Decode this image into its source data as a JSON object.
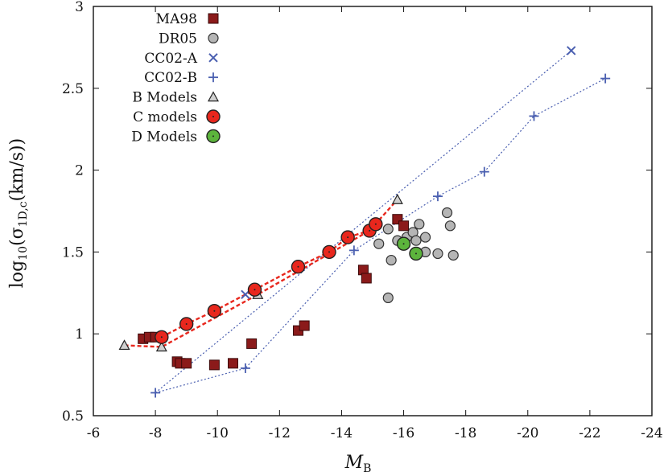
{
  "chart_data": {
    "type": "scatter",
    "title": "",
    "xlabel": "M",
    "xlabel_sub": "B",
    "ylabel_prefix": "log",
    "ylabel_sub10": "10",
    "ylabel_sigma": "σ",
    "ylabel_sub": "1D,c",
    "ylabel_unit": "(km/s))",
    "ylabel_open": "(",
    "xlim": [
      -6,
      -24
    ],
    "ylim": [
      0.5,
      3
    ],
    "xticks": [
      -6,
      -8,
      -10,
      -12,
      -14,
      -16,
      -18,
      -20,
      -22,
      -24
    ],
    "xtick_labels": [
      "-6",
      "-8",
      "-10",
      "-12",
      "-14",
      "-16",
      "-18",
      "-20",
      "-22",
      "-24"
    ],
    "yticks": [
      0.5,
      1,
      1.5,
      2,
      2.5,
      3
    ],
    "ytick_labels": [
      "0.5",
      "1",
      "1.5",
      "2",
      "2.5",
      "3"
    ],
    "legend_position": "top-left",
    "series": [
      {
        "name": "MA98",
        "marker": "square",
        "color": "#8b1a1a",
        "points": [
          [
            -7.6,
            0.97
          ],
          [
            -7.8,
            0.98
          ],
          [
            -8.0,
            0.98
          ],
          [
            -8.7,
            0.83
          ],
          [
            -8.8,
            0.82
          ],
          [
            -9.0,
            0.82
          ],
          [
            -9.9,
            0.81
          ],
          [
            -10.5,
            0.82
          ],
          [
            -11.1,
            0.94
          ],
          [
            -12.6,
            1.02
          ],
          [
            -12.8,
            1.05
          ],
          [
            -14.7,
            1.39
          ],
          [
            -14.8,
            1.34
          ],
          [
            -15.8,
            1.7
          ],
          [
            -16.0,
            1.66
          ]
        ]
      },
      {
        "name": "DR05",
        "marker": "circle-gray",
        "color": "#b0b0b0",
        "points": [
          [
            -15.2,
            1.55
          ],
          [
            -15.5,
            1.64
          ],
          [
            -15.6,
            1.45
          ],
          [
            -15.5,
            1.22
          ],
          [
            -15.8,
            1.57
          ],
          [
            -16.0,
            1.56
          ],
          [
            -16.1,
            1.59
          ],
          [
            -16.3,
            1.62
          ],
          [
            -16.4,
            1.57
          ],
          [
            -16.5,
            1.67
          ],
          [
            -16.7,
            1.59
          ],
          [
            -16.7,
            1.5
          ],
          [
            -17.1,
            1.49
          ],
          [
            -17.4,
            1.74
          ],
          [
            -17.5,
            1.66
          ],
          [
            -17.6,
            1.48
          ]
        ]
      },
      {
        "name": "CC02-A",
        "marker": "x",
        "color": "#4a5fb0",
        "points": [
          [
            -10.9,
            1.24
          ],
          [
            -21.4,
            2.73
          ]
        ]
      },
      {
        "name": "CC02-B",
        "marker": "plus",
        "color": "#4a5fb0",
        "points": [
          [
            -8.0,
            0.64
          ],
          [
            -10.9,
            0.79
          ],
          [
            -14.4,
            1.51
          ],
          [
            -17.1,
            1.84
          ],
          [
            -18.6,
            1.99
          ],
          [
            -20.2,
            2.33
          ],
          [
            -22.5,
            2.56
          ]
        ]
      },
      {
        "name": "B Models",
        "marker": "triangle",
        "color": "#c8c8c8",
        "points": [
          [
            -7.0,
            0.93
          ],
          [
            -8.2,
            0.92
          ],
          [
            -11.3,
            1.24
          ],
          [
            -15.8,
            1.82
          ]
        ]
      },
      {
        "name": "C models",
        "marker": "circle-red",
        "color": "#e8271d",
        "points": [
          [
            -8.2,
            0.98
          ],
          [
            -9.0,
            1.06
          ],
          [
            -9.9,
            1.14
          ],
          [
            -11.2,
            1.27
          ],
          [
            -12.6,
            1.41
          ],
          [
            -13.6,
            1.5
          ],
          [
            -14.2,
            1.59
          ],
          [
            -14.9,
            1.63
          ],
          [
            -15.1,
            1.67
          ]
        ]
      },
      {
        "name": "D Models",
        "marker": "circle-green",
        "color": "#5cb43c",
        "points": [
          [
            -16.0,
            1.55
          ],
          [
            -16.4,
            1.49
          ]
        ]
      }
    ],
    "lines": [
      {
        "name": "CC02-A dotted",
        "style": "dotted-blue",
        "points": [
          [
            -8.0,
            0.64
          ],
          [
            -21.4,
            2.73
          ]
        ]
      },
      {
        "name": "CC02-B dotted",
        "style": "dotted-blue",
        "points": [
          [
            -8.0,
            0.64
          ],
          [
            -10.9,
            0.79
          ],
          [
            -14.4,
            1.51
          ],
          [
            -17.1,
            1.84
          ],
          [
            -18.6,
            1.99
          ],
          [
            -20.2,
            2.33
          ],
          [
            -22.5,
            2.56
          ]
        ]
      },
      {
        "name": "B models dashed",
        "style": "dashed-red",
        "points": [
          [
            -7.0,
            0.93
          ],
          [
            -8.2,
            0.92
          ],
          [
            -11.3,
            1.24
          ],
          [
            -14.9,
            1.63
          ],
          [
            -15.8,
            1.82
          ]
        ]
      },
      {
        "name": "C models dashed",
        "style": "dashed-red",
        "points": [
          [
            -8.2,
            0.98
          ],
          [
            -9.0,
            1.06
          ],
          [
            -9.9,
            1.14
          ],
          [
            -11.2,
            1.27
          ],
          [
            -12.6,
            1.41
          ],
          [
            -13.6,
            1.5
          ],
          [
            -14.2,
            1.59
          ],
          [
            -14.9,
            1.63
          ],
          [
            -15.1,
            1.67
          ]
        ]
      }
    ]
  }
}
